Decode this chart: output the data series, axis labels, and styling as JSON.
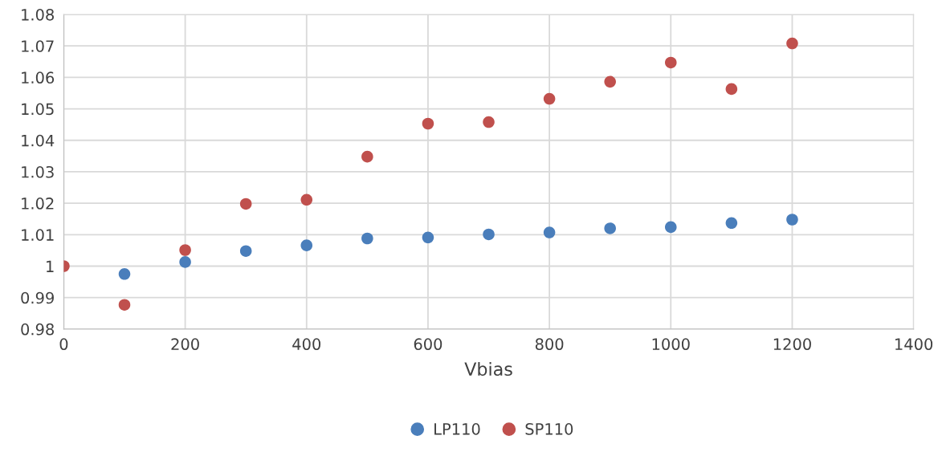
{
  "chart_data": {
    "type": "scatter",
    "xlabel": "Vbias",
    "x": [
      0,
      100,
      200,
      300,
      400,
      500,
      600,
      700,
      800,
      900,
      1000,
      1100,
      1200
    ],
    "series": [
      {
        "name": "LP110",
        "color": "#4a7ebb",
        "values": [
          null,
          0.9975,
          1.0013,
          1.0048,
          1.0066,
          1.0088,
          1.0091,
          1.0101,
          1.0107,
          1.012,
          1.0124,
          1.0137,
          1.0148
        ]
      },
      {
        "name": "SP110",
        "color": "#c0504d",
        "values": [
          1.0,
          0.9877,
          1.0051,
          1.0198,
          1.0211,
          1.0348,
          1.0453,
          1.0458,
          1.0532,
          1.0586,
          1.0647,
          1.0563,
          1.0708
        ]
      }
    ],
    "xlim": [
      0,
      1400
    ],
    "xticks": [
      0,
      200,
      400,
      600,
      800,
      1000,
      1200,
      1400
    ],
    "ylim": [
      0.98,
      1.08
    ],
    "yticks": [
      {
        "value": 0.98,
        "label": "0.98"
      },
      {
        "value": 0.99,
        "label": "0.99"
      },
      {
        "value": 1,
        "label": "1"
      },
      {
        "value": 1.01,
        "label": "1.01"
      },
      {
        "value": 1.02,
        "label": "1.02"
      },
      {
        "value": 1.03,
        "label": "1.03"
      },
      {
        "value": 1.04,
        "label": "1.04"
      },
      {
        "value": 1.05,
        "label": "1.05"
      },
      {
        "value": 1.06,
        "label": "1.06"
      },
      {
        "value": 1.07,
        "label": "1.07"
      },
      {
        "value": 1.08,
        "label": "1.08"
      }
    ],
    "grid": true,
    "legend": "bottom",
    "marker": "circle"
  }
}
